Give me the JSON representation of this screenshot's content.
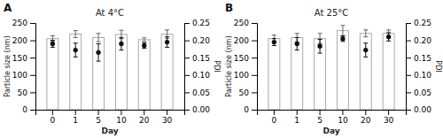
{
  "chart_data": [
    {
      "type": "bar",
      "title": "At 4°C",
      "annotations": [
        "A"
      ],
      "categories": [
        "0",
        "1",
        "5",
        "10",
        "20",
        "30"
      ],
      "series": [
        {
          "type": "bar",
          "color": "#ffffff",
          "values": [
            205,
            218,
            208,
            217,
            202,
            218
          ],
          "errors": [
            8,
            10,
            12,
            12,
            5,
            12
          ]
        },
        {
          "type": "scatter",
          "axis": "y2",
          "marker": "circle",
          "color": "#111111",
          "values": [
            0.19,
            0.172,
            0.165,
            0.19,
            0.185,
            0.195
          ],
          "errors": [
            0.01,
            0.02,
            0.025,
            0.018,
            0.008,
            0.015
          ]
        }
      ],
      "xlabel": "Day",
      "ylabel": "Particle size (nm)",
      "y2label": "PDI",
      "ylim": [
        0,
        250
      ],
      "yticks": [
        0,
        50,
        100,
        150,
        200,
        250
      ],
      "y2lim": [
        0,
        0.25
      ],
      "y2ticks": [
        {
          "value": 0,
          "label": "0.00"
        },
        0.05,
        {
          "value": 0.1,
          "label": "0.10"
        },
        0.15,
        {
          "value": 0.2,
          "label": "0.20"
        },
        0.25
      ],
      "grid": false
    },
    {
      "type": "bar",
      "title": "At 25°C",
      "annotations": [
        "B"
      ],
      "categories": [
        "0",
        "1",
        "5",
        "10",
        "20",
        "30"
      ],
      "series": [
        {
          "type": "bar",
          "color": "#ffffff",
          "values": [
            205,
            208,
            205,
            228,
            220,
            220
          ],
          "errors": [
            10,
            12,
            15,
            15,
            10,
            10
          ]
        },
        {
          "type": "scatter",
          "axis": "y2",
          "marker": "circle",
          "color": "#111111",
          "values": [
            0.195,
            0.19,
            0.183,
            0.205,
            0.172,
            0.21
          ],
          "errors": [
            0.01,
            0.018,
            0.02,
            0.008,
            0.02,
            0.012
          ]
        }
      ],
      "xlabel": "Day",
      "ylabel": "Particle size (nm)",
      "y2label": "PDI",
      "ylim": [
        0,
        250
      ],
      "yticks": [
        0,
        50,
        100,
        150,
        200,
        250
      ],
      "y2lim": [
        0,
        0.25
      ],
      "y2ticks": [
        {
          "value": 0,
          "label": "0.00"
        },
        0.05,
        {
          "value": 0.1,
          "label": "0.10"
        },
        0.15,
        {
          "value": 0.2,
          "label": "0.20"
        },
        0.25
      ],
      "grid": false
    }
  ]
}
